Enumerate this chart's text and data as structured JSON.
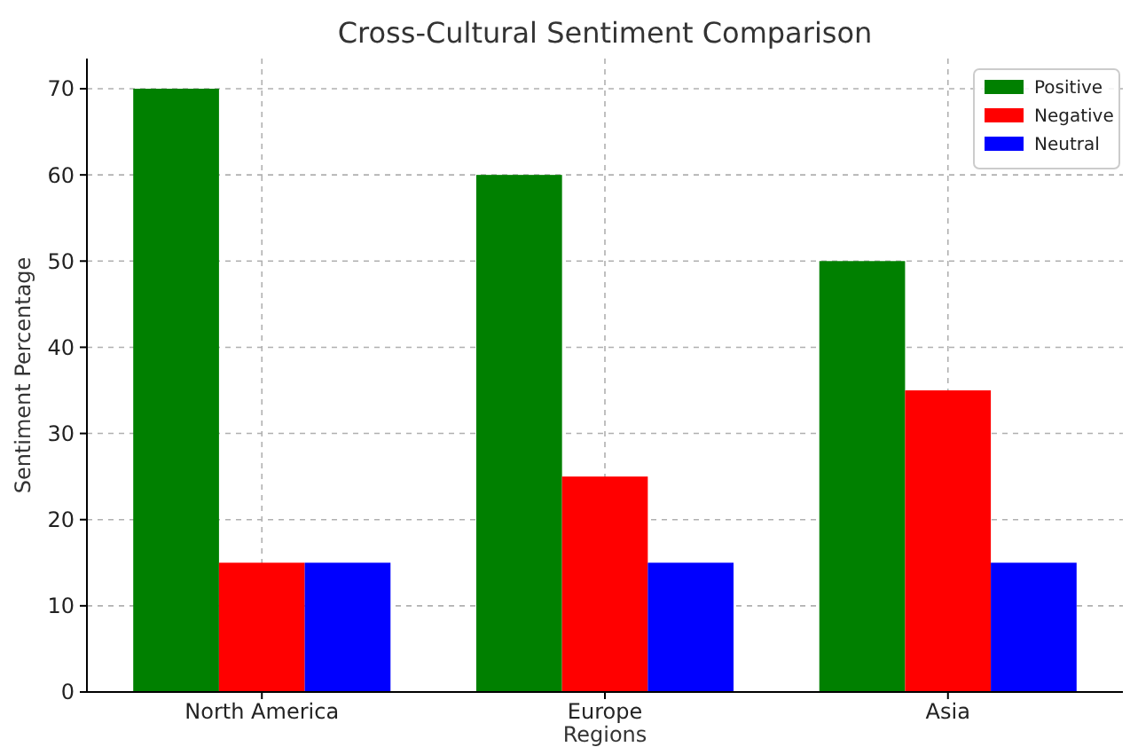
{
  "chart_data": {
    "type": "bar",
    "title": "Cross-Cultural Sentiment Comparison",
    "xlabel": "Regions",
    "ylabel": "Sentiment Percentage",
    "categories": [
      "North America",
      "Europe",
      "Asia"
    ],
    "series": [
      {
        "name": "Positive",
        "color": "#008000",
        "values": [
          70,
          60,
          50
        ]
      },
      {
        "name": "Negative",
        "color": "#ff0000",
        "values": [
          15,
          25,
          35
        ]
      },
      {
        "name": "Neutral",
        "color": "#0000ff",
        "values": [
          15,
          15,
          15
        ]
      }
    ],
    "ylim": [
      0,
      73.5
    ],
    "yticks": [
      0,
      10,
      20,
      30,
      40,
      50,
      60,
      70
    ],
    "grid": true,
    "legend": "top right"
  }
}
